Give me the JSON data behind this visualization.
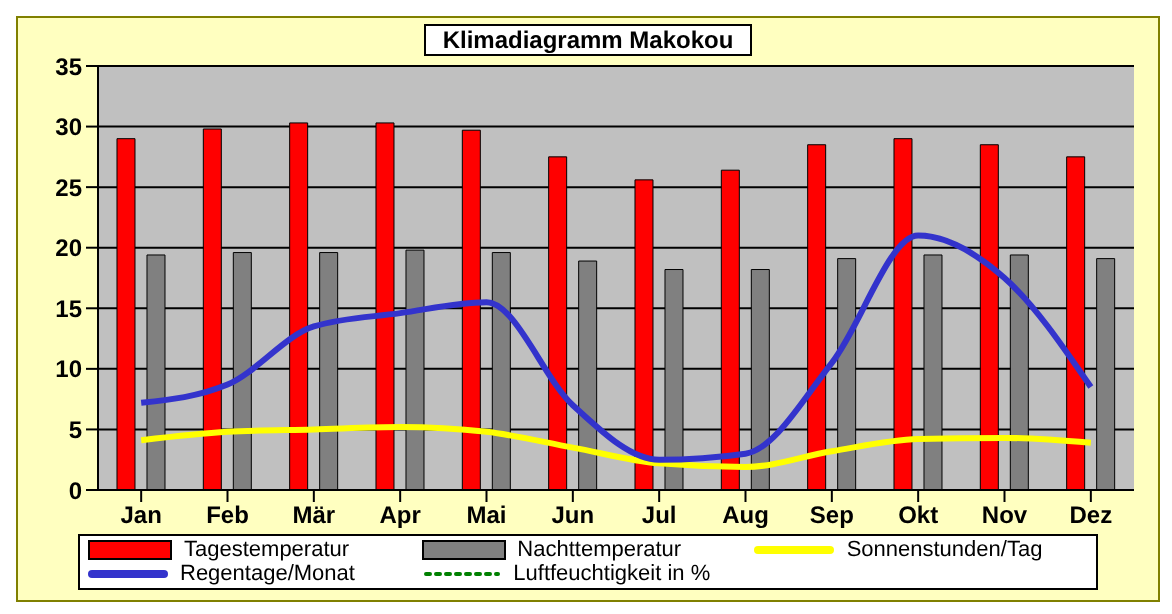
{
  "chart_data": {
    "type": "bar",
    "title": "Klimadiagramm Makokou",
    "categories": [
      "Jan",
      "Feb",
      "Mär",
      "Apr",
      "Mai",
      "Jun",
      "Jul",
      "Aug",
      "Sep",
      "Okt",
      "Nov",
      "Dez"
    ],
    "series": [
      {
        "name": "Tagestemperatur",
        "color": "#ff0000",
        "values": [
          29,
          29.8,
          30.3,
          30.3,
          29.7,
          27.5,
          25.6,
          26.4,
          28.5,
          29,
          28.5,
          27.5
        ]
      },
      {
        "name": "Nachttemperatur",
        "color": "#808080",
        "values": [
          19.4,
          19.6,
          19.6,
          19.8,
          19.6,
          18.9,
          18.2,
          18.2,
          19.1,
          19.4,
          19.4,
          19.1
        ]
      },
      {
        "name": "Sonnenstunden/Tag",
        "type": "line",
        "color": "#ffff00",
        "values": [
          4.1,
          4.8,
          5,
          5.2,
          4.8,
          3.5,
          2.2,
          1.9,
          3.2,
          4.2,
          4.3,
          3.9
        ]
      },
      {
        "name": "Regentage/Monat",
        "type": "line",
        "color": "#3333cc",
        "values": [
          7.2,
          8.7,
          13.5,
          14.6,
          15.5,
          7,
          2.5,
          3,
          10.5,
          21,
          17.5,
          8.5
        ]
      },
      {
        "name": "Luftfeuchtigkeit in %",
        "type": "line",
        "color": "#008000",
        "line_style": "dotted",
        "values": [
          null,
          null,
          null,
          null,
          null,
          null,
          null,
          null,
          null,
          null,
          null,
          null
        ]
      }
    ],
    "ylim": [
      0,
      35
    ],
    "yticks": [
      0,
      5,
      10,
      15,
      20,
      25,
      30,
      35
    ],
    "grid": "y",
    "legend": "bottom",
    "marker": "none"
  }
}
